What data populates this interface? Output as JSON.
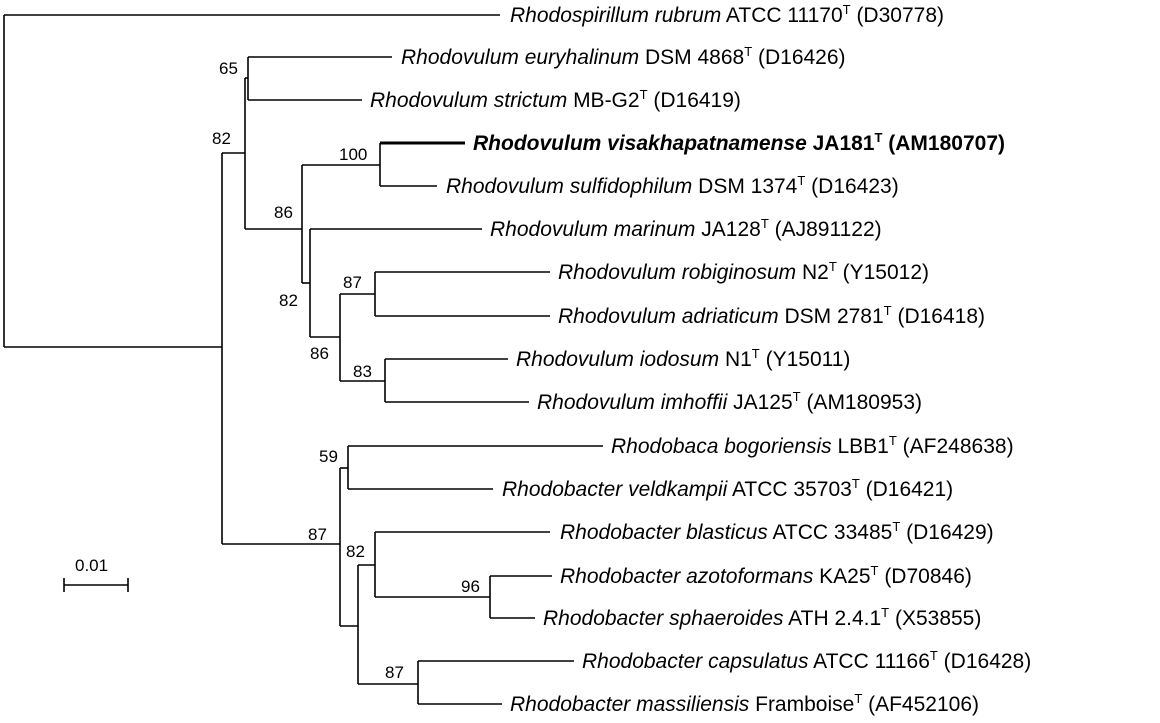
{
  "tree": {
    "taxa": [
      {
        "id": "t1",
        "genus": "Rhodospirillum",
        "species": "rubrum",
        "strain": "ATCC 11170",
        "accession": "(D30778)",
        "bold": false
      },
      {
        "id": "t2",
        "genus": "Rhodovulum",
        "species": "euryhalinum",
        "strain": "DSM 4868",
        "accession": "(D16426)",
        "bold": false
      },
      {
        "id": "t3",
        "genus": "Rhodovulum",
        "species": "strictum",
        "strain": "MB-G2",
        "accession": "(D16419)",
        "bold": false
      },
      {
        "id": "t4",
        "genus": "Rhodovulum",
        "species": "visakhapatnamense",
        "strain": "JA181",
        "accession": "(AM180707)",
        "bold": true
      },
      {
        "id": "t5",
        "genus": "Rhodovulum",
        "species": "sulfidophilum",
        "strain": "DSM 1374",
        "accession": "(D16423)",
        "bold": false
      },
      {
        "id": "t6",
        "genus": "Rhodovulum",
        "species": "marinum",
        "strain": "JA128",
        "accession": "(AJ891122)",
        "bold": false
      },
      {
        "id": "t7",
        "genus": "Rhodovulum",
        "species": "robiginosum",
        "strain": "N2",
        "accession": "(Y15012)",
        "bold": false
      },
      {
        "id": "t8",
        "genus": "Rhodovulum",
        "species": "adriaticum",
        "strain": "DSM 2781",
        "accession": "(D16418)",
        "bold": false
      },
      {
        "id": "t9",
        "genus": "Rhodovulum",
        "species": "iodosum",
        "strain": "N1",
        "accession": "(Y15011)",
        "bold": false
      },
      {
        "id": "t10",
        "genus": "Rhodovulum",
        "species": "imhoffii",
        "strain": "JA125",
        "accession": "(AM180953)",
        "bold": false
      },
      {
        "id": "t11",
        "genus": "Rhodobaca",
        "species": "bogoriensis",
        "strain": "LBB1",
        "accession": "(AF248638)",
        "bold": false
      },
      {
        "id": "t12",
        "genus": "Rhodobacter",
        "species": "veldkampii",
        "strain": "ATCC 35703",
        "accession": "(D16421)",
        "bold": false
      },
      {
        "id": "t13",
        "genus": "Rhodobacter",
        "species": "blasticus",
        "strain": "ATCC 33485",
        "accession": "(D16429)",
        "bold": false
      },
      {
        "id": "t14",
        "genus": "Rhodobacter",
        "species": "azotoformans",
        "strain": "KA25",
        "accession": "(D70846)",
        "bold": false
      },
      {
        "id": "t15",
        "genus": "Rhodobacter",
        "species": "sphaeroides",
        "strain": "ATH 2.4.1",
        "accession": "(X53855)",
        "bold": false
      },
      {
        "id": "t16",
        "genus": "Rhodobacter",
        "species": "capsulatus",
        "strain": "ATCC 11166",
        "accession": "(D16428)",
        "bold": false
      },
      {
        "id": "t17",
        "genus": "Rhodobacter",
        "species": "massiliensis",
        "strain": "Framboise",
        "accession": "(AF452106)",
        "bold": false
      }
    ],
    "type_strain_mark": "T",
    "bootstrap": {
      "n_euryhalinum_strictum": "65",
      "n_rhodovulum": "82",
      "n_visakha_sulfido": "100",
      "n_marinum_group": "86",
      "n_inner": "82",
      "n_robig_adria": "87",
      "n_four": "86",
      "n_iodosum_imhoffii": "83",
      "n_rhodobaca_veld": "59",
      "n_rhodobacter_group": "87",
      "n_rhodobacter_core": "82",
      "n_azoto_sphaer": "96",
      "n_caps_massil": "87"
    },
    "scale_bar_label": "0.01"
  }
}
